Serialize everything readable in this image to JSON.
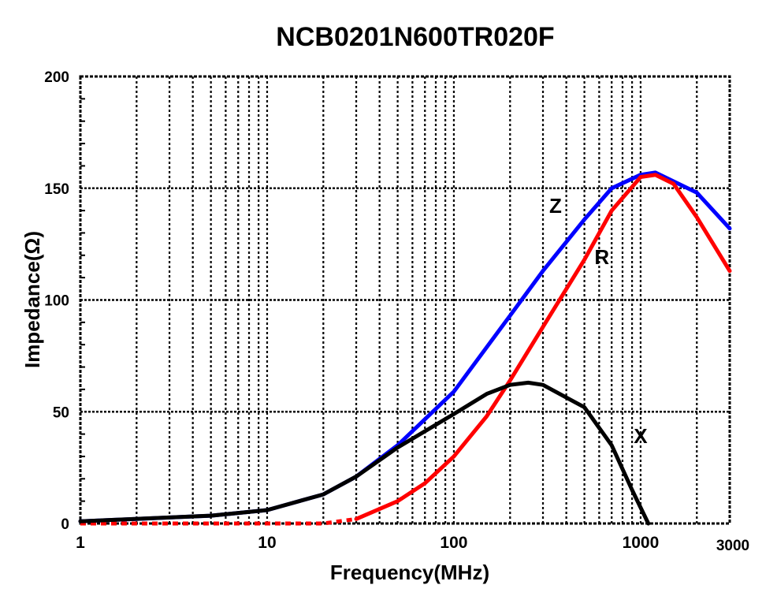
{
  "chart_data": {
    "type": "line",
    "title": "NCB0201N600TR020F",
    "xlabel": "Frequency(MHz)",
    "ylabel": "Impedance(Ω)",
    "x_scale": "log",
    "xlim": [
      1,
      3000
    ],
    "ylim": [
      0,
      200
    ],
    "x_ticks": [
      1,
      10,
      100,
      1000,
      3000
    ],
    "x_tick_labels": [
      "1",
      "10",
      "100",
      "1000",
      "3000"
    ],
    "y_ticks": [
      0,
      50,
      100,
      150,
      200
    ],
    "y_tick_labels": [
      "0",
      "50",
      "100",
      "150",
      "200"
    ],
    "grid": true,
    "legend": "none",
    "series": [
      {
        "name": "Z",
        "color": "#0000ff",
        "x": [
          1,
          2,
          5,
          10,
          20,
          30,
          50,
          100,
          200,
          300,
          500,
          700,
          1000,
          1200,
          2000,
          3000
        ],
        "y": [
          1,
          2,
          3.5,
          6,
          13,
          21,
          35,
          59,
          93,
          113,
          136,
          150,
          156,
          157,
          148,
          132
        ]
      },
      {
        "name": "R",
        "color": "#ff0000",
        "x": [
          1,
          10,
          20,
          30,
          50,
          70,
          100,
          150,
          200,
          300,
          500,
          700,
          1000,
          1200,
          1500,
          2000,
          3000
        ],
        "y": [
          0,
          0,
          0,
          2,
          10,
          18,
          30,
          48,
          64,
          88,
          118,
          140,
          155,
          156,
          152,
          137,
          113
        ]
      },
      {
        "name": "X",
        "color": "#000000",
        "x": [
          1,
          5,
          10,
          20,
          30,
          50,
          100,
          150,
          200,
          250,
          300,
          500,
          700,
          900,
          1100
        ],
        "y": [
          1,
          3.5,
          6,
          13,
          21,
          34,
          49,
          58,
          62,
          63,
          62,
          52,
          35,
          15,
          0
        ]
      }
    ],
    "annotations": [
      {
        "text": "Z",
        "x": 350,
        "y": 139
      },
      {
        "text": "R",
        "x": 620,
        "y": 116
      },
      {
        "text": "X",
        "x": 1000,
        "y": 36
      }
    ]
  }
}
